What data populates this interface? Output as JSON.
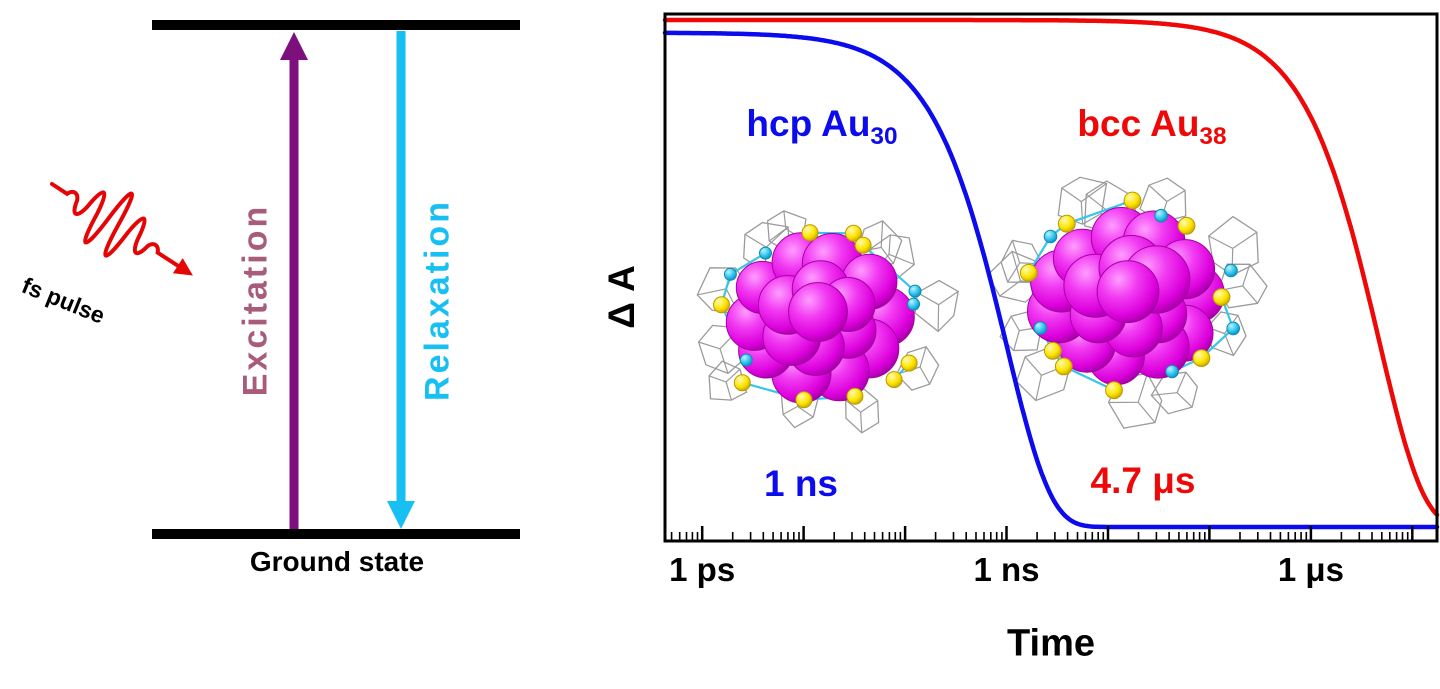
{
  "left_panel": {
    "pulse_label": "fs pulse",
    "excitation_label": "Excitation",
    "relaxation_label": "Relaxation",
    "ground_state_label": "Ground state",
    "colors": {
      "pulse": "#E60505",
      "excitation_arrow": "#7D107D",
      "excitation_text": "#A85C7C",
      "relaxation": "#18BFF2",
      "levels": "#000000"
    }
  },
  "chart_data": {
    "type": "line",
    "title": "",
    "xlabel": "Time",
    "ylabel": "Δ A",
    "x_scale": "log",
    "x_unit": "seconds",
    "x_range_seconds": [
      4.3e-13,
      1.75e-05
    ],
    "x_ticks": [
      {
        "label": "1 ps",
        "seconds": 1e-12
      },
      {
        "label": "1 ns",
        "seconds": 1e-09
      },
      {
        "label": "1 μs",
        "seconds": 1e-06
      }
    ],
    "y_axis": "arbitrary amplitude, no ticks",
    "legend_position": "labels inside plot",
    "grid": false,
    "series": [
      {
        "name": "hcp Au30",
        "label_base": "hcp Au",
        "label_sub": "30",
        "lifetime_label": "1 ns",
        "tau_seconds": 1e-09,
        "amplitude": 0.975,
        "color": "#0B0BEE",
        "molecule_image": "au30-cluster"
      },
      {
        "name": "bcc Au38",
        "label_base": "bcc Au",
        "label_sub": "38",
        "lifetime_label": "4.7 μs",
        "tau_seconds": 4.7e-06,
        "amplitude": 1.0,
        "color": "#EE0808",
        "molecule_image": "au38-cluster"
      }
    ]
  }
}
